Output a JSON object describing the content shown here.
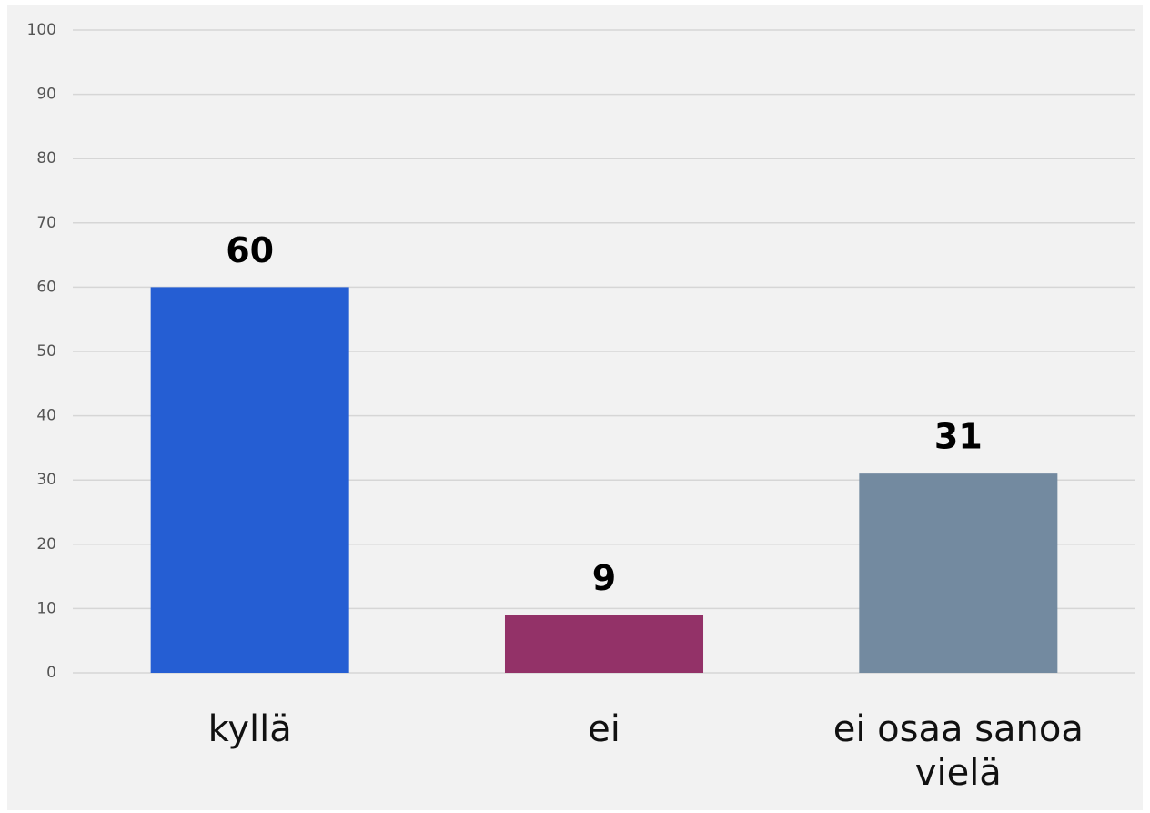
{
  "chart_data": {
    "type": "bar",
    "categories": [
      "kyllä",
      "ei",
      "ei osaa sanoa vielä"
    ],
    "values": [
      60,
      9,
      31
    ],
    "colors": [
      "#255ed3",
      "#933268",
      "#738aa0"
    ],
    "ylim": [
      0,
      100
    ],
    "yticks": [
      0,
      10,
      20,
      30,
      40,
      50,
      60,
      70,
      80,
      90,
      100
    ],
    "grid": true
  }
}
